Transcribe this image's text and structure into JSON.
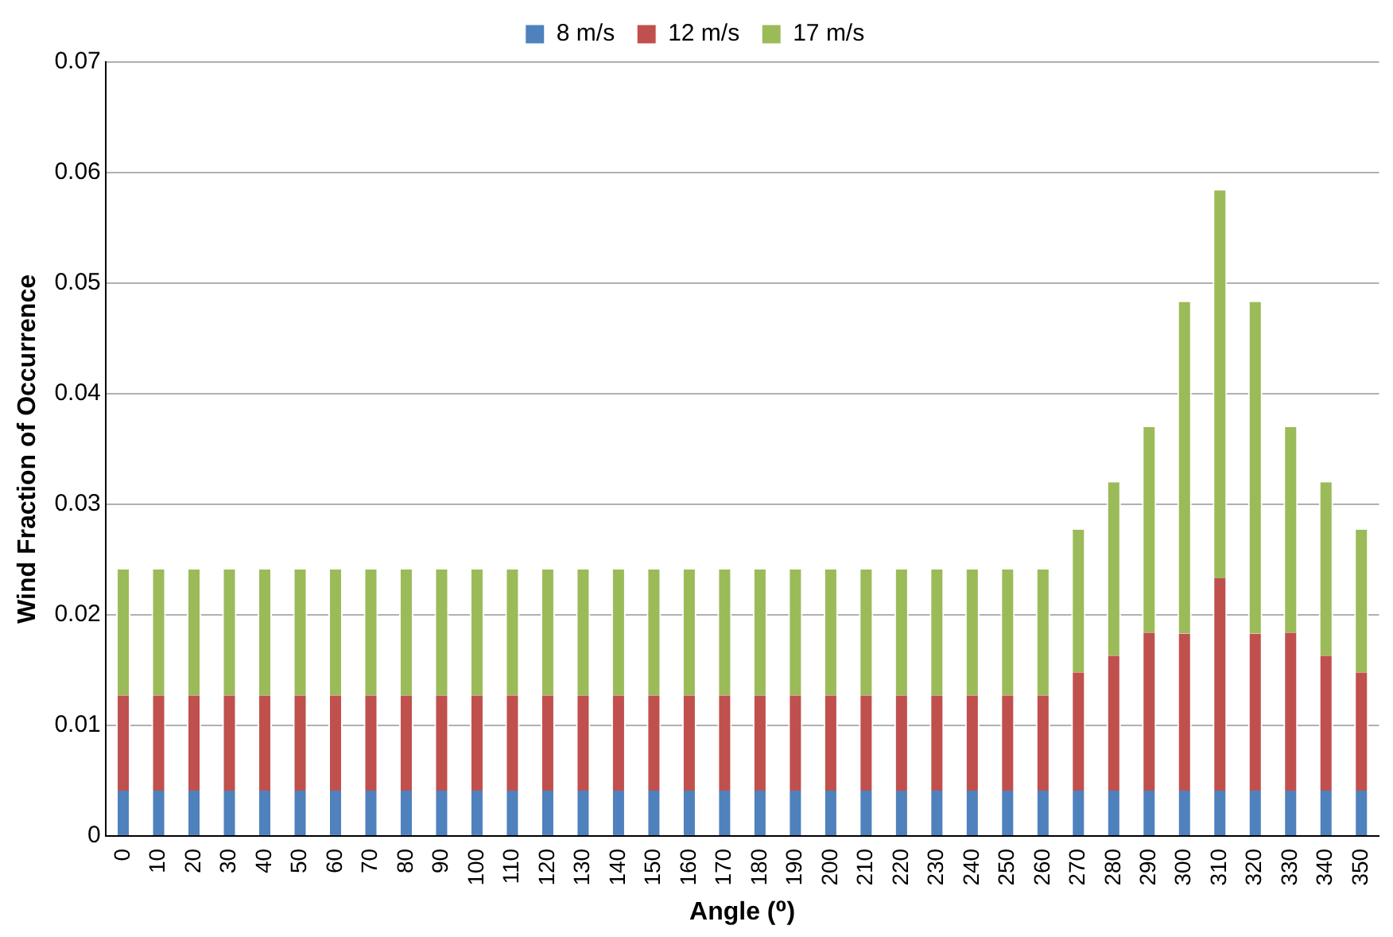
{
  "chart_data": {
    "type": "bar",
    "stacked": true,
    "xlabel": "Angle (⁰)",
    "ylabel": "Wind Fraction of Occurrence",
    "categories": [
      "0",
      "10",
      "20",
      "30",
      "40",
      "50",
      "60",
      "70",
      "80",
      "90",
      "100",
      "110",
      "120",
      "130",
      "140",
      "150",
      "160",
      "170",
      "180",
      "190",
      "200",
      "210",
      "220",
      "230",
      "240",
      "250",
      "260",
      "270",
      "280",
      "290",
      "300",
      "310",
      "320",
      "330",
      "340",
      "350"
    ],
    "series": [
      {
        "name": "8 m/s",
        "color": "#4f81bd",
        "values": [
          0.0041,
          0.0041,
          0.0041,
          0.0041,
          0.0041,
          0.0041,
          0.0041,
          0.0041,
          0.0041,
          0.0041,
          0.0041,
          0.0041,
          0.0041,
          0.0041,
          0.0041,
          0.0041,
          0.0041,
          0.0041,
          0.0041,
          0.0041,
          0.0041,
          0.0041,
          0.0041,
          0.0041,
          0.0041,
          0.0041,
          0.0041,
          0.0041,
          0.0041,
          0.0041,
          0.0041,
          0.0041,
          0.0041,
          0.0041,
          0.0041,
          0.0041
        ]
      },
      {
        "name": "12 m/s",
        "color": "#c0504d",
        "values": [
          0.0086,
          0.0086,
          0.0086,
          0.0086,
          0.0086,
          0.0086,
          0.0086,
          0.0086,
          0.0086,
          0.0086,
          0.0086,
          0.0086,
          0.0086,
          0.0086,
          0.0086,
          0.0086,
          0.0086,
          0.0086,
          0.0086,
          0.0086,
          0.0086,
          0.0086,
          0.0086,
          0.0086,
          0.0086,
          0.0086,
          0.0086,
          0.0107,
          0.0122,
          0.0143,
          0.0142,
          0.0192,
          0.0142,
          0.0143,
          0.0122,
          0.0107
        ]
      },
      {
        "name": "17 m/s",
        "color": "#9bbb59",
        "values": [
          0.0114,
          0.0114,
          0.0114,
          0.0114,
          0.0114,
          0.0114,
          0.0114,
          0.0114,
          0.0114,
          0.0114,
          0.0114,
          0.0114,
          0.0114,
          0.0114,
          0.0114,
          0.0114,
          0.0114,
          0.0114,
          0.0114,
          0.0114,
          0.0114,
          0.0114,
          0.0114,
          0.0114,
          0.0114,
          0.0114,
          0.0114,
          0.0129,
          0.0157,
          0.0186,
          0.03,
          0.0351,
          0.03,
          0.0186,
          0.0157,
          0.0129
        ]
      }
    ],
    "ylim": [
      0,
      0.07
    ],
    "yticks": [
      0,
      0.01,
      0.02,
      0.03,
      0.04,
      0.05,
      0.06,
      0.07
    ],
    "grid": "y",
    "legend": "top"
  }
}
